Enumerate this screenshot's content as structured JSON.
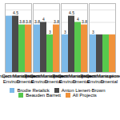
{
  "chart_data": {
    "type": "bar",
    "categories": [
      "Communication",
      "Environmental",
      "Project Management",
      "D"
    ],
    "series": [
      {
        "name": "Brodie Retalick",
        "color": "#7cb9e8",
        "values": [
          4.5,
          3.8,
          3.0,
          3.0
        ],
        "value_labels": [
          null,
          "3.8",
          "3",
          "3"
        ]
      },
      {
        "name": "Anton Lienert-Brown",
        "color": "#4a4a4a",
        "values": [
          4.5,
          4.0,
          4.5,
          3.0
        ],
        "value_labels": [
          "4.5",
          "4",
          "4.5",
          null
        ]
      },
      {
        "name": "Beauden Barrett",
        "color": "#57c84d",
        "values": [
          3.8,
          3.0,
          4.0,
          3.0
        ],
        "value_labels": [
          "3.8",
          "3",
          "4",
          null
        ]
      },
      {
        "name": "All Projects",
        "color": "#f0923b",
        "values": [
          3.8,
          3.8,
          3.8,
          3.0
        ],
        "value_labels": [
          "3.8",
          "3.8",
          "3.8",
          null
        ]
      }
    ],
    "ylim": [
      0,
      5.5
    ],
    "yticks": [
      1,
      2,
      3,
      4,
      5
    ],
    "grid": true,
    "tick_labels": "x",
    "legend": "bottom",
    "data_labels": true
  }
}
